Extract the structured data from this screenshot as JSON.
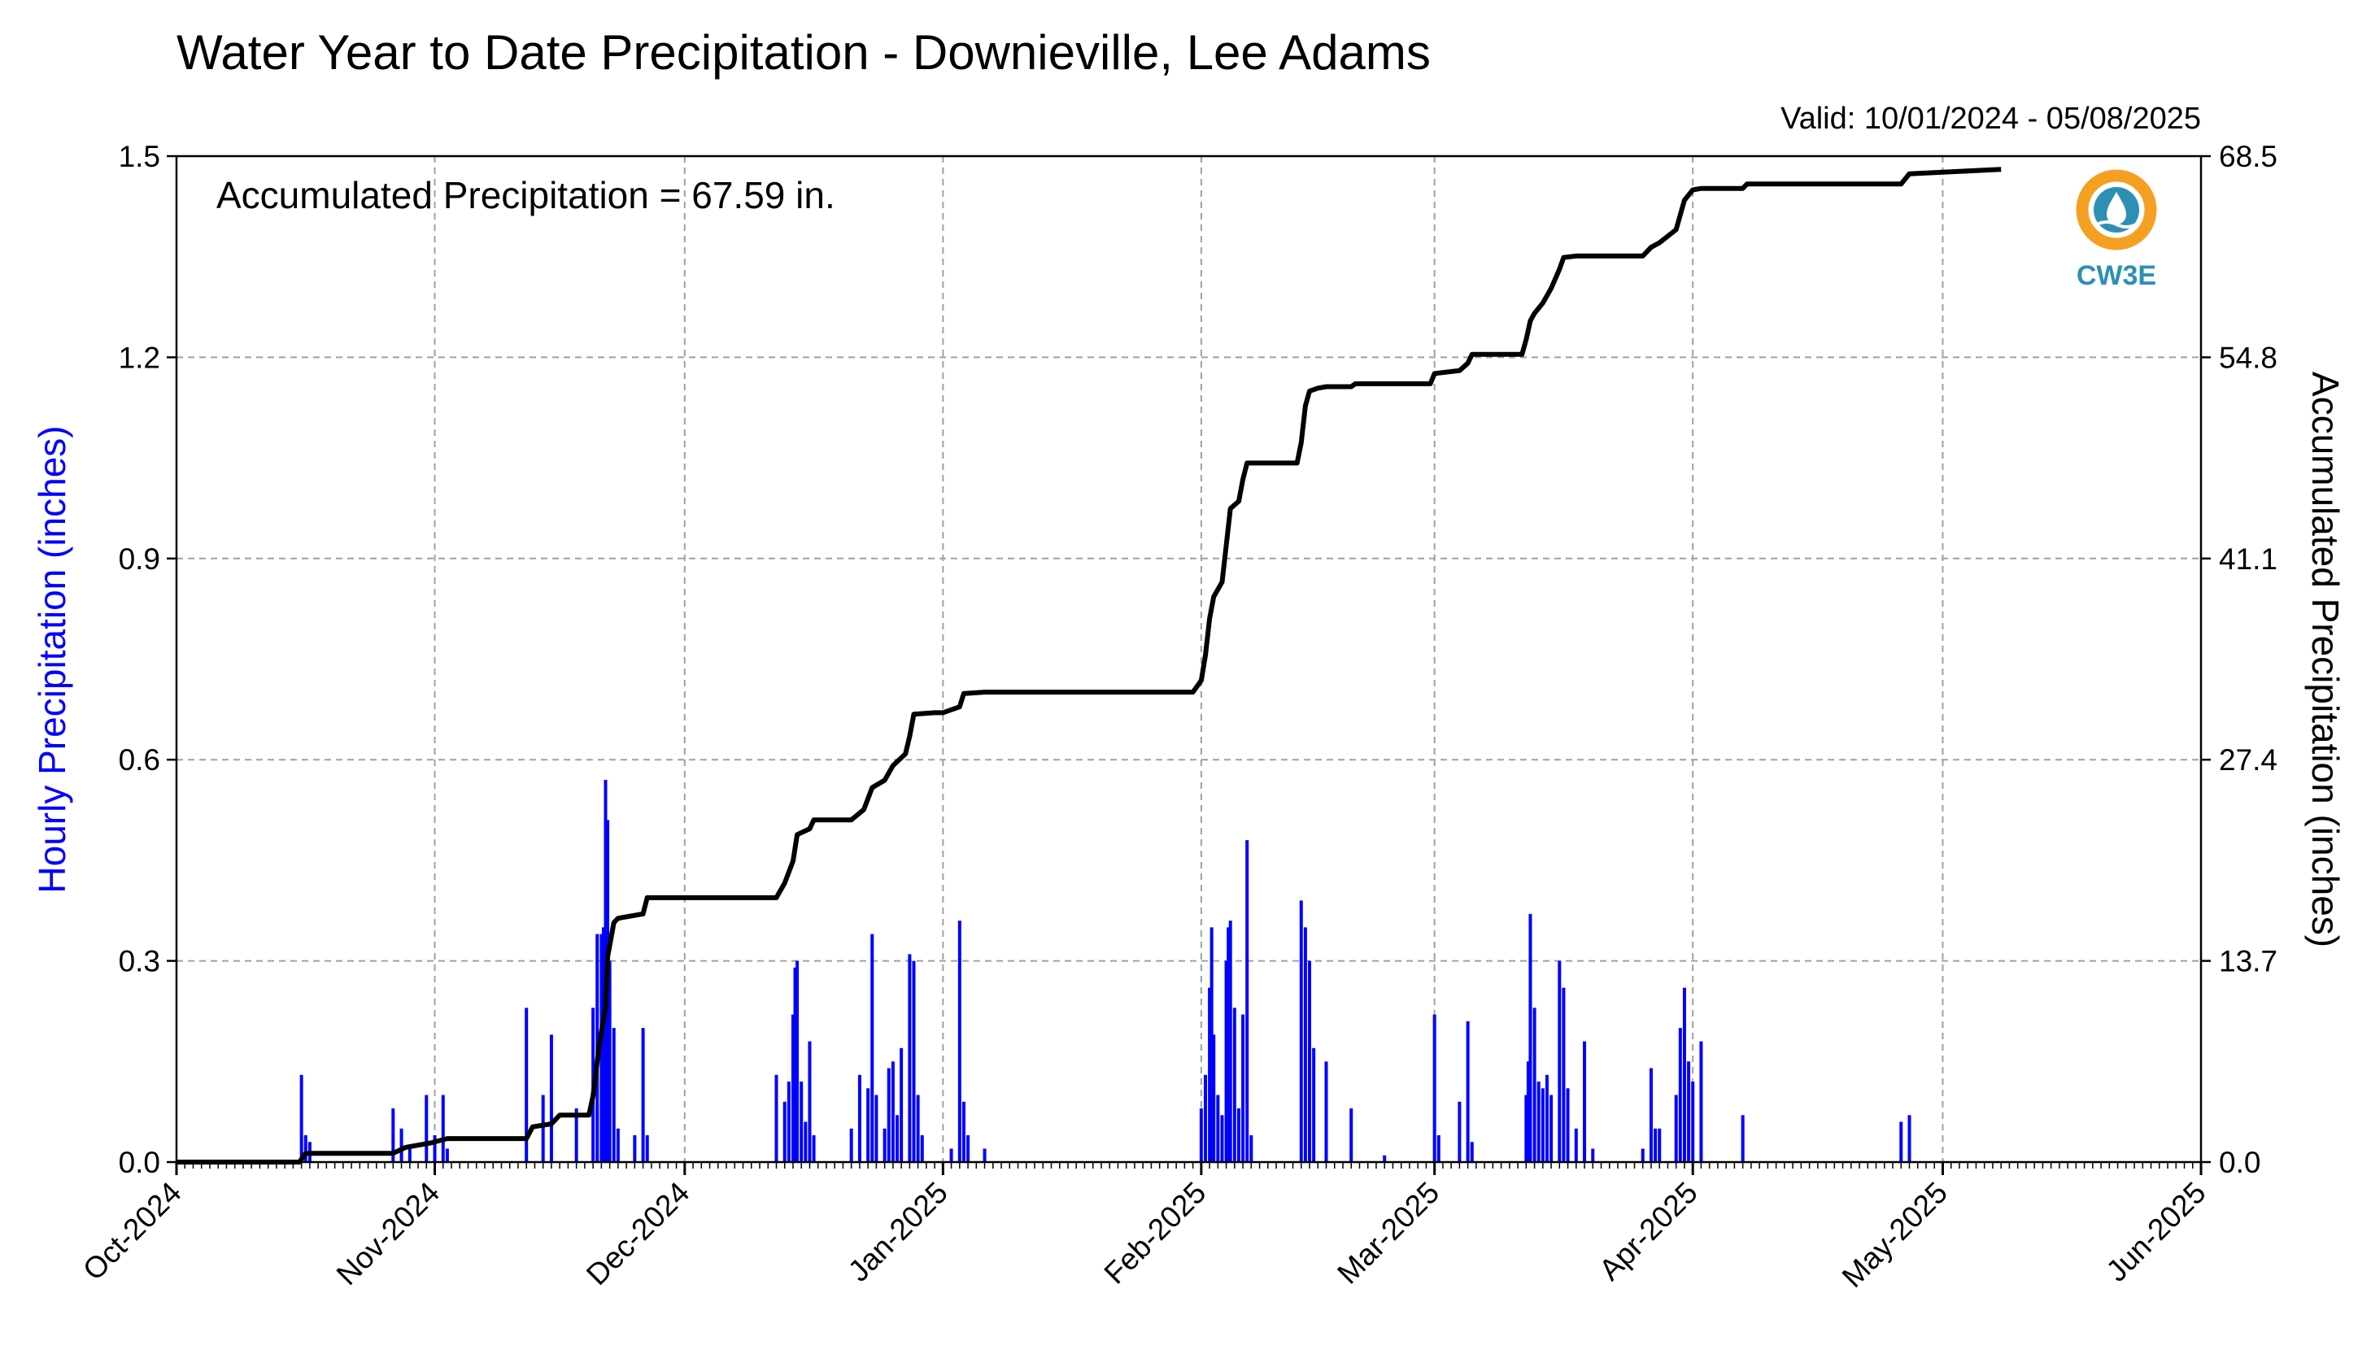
{
  "chart_data": {
    "type": "bar",
    "title": "Water Year to Date Precipitation - Downieville, Lee Adams",
    "valid": "Valid: 10/01/2024 - 05/08/2025",
    "annotation": "Accumulated Precipitation = 67.59 in.",
    "ylabel_left": "Hourly Precipitation (inches)",
    "ylabel_right": "Accumulated Precipitation (inches)",
    "colors": {
      "bars": "#0000ff",
      "line": "#000000",
      "left_label": "#0000ff",
      "logo_orange": "#f5a023",
      "logo_blue": "#2e8fb4"
    },
    "logo_text": "CW3E",
    "grid": true,
    "xlim": [
      "2024-10-01",
      "2025-06-01"
    ],
    "x_ticks": [
      "Oct-2024",
      "Nov-2024",
      "Dec-2024",
      "Jan-2025",
      "Feb-2025",
      "Mar-2025",
      "Apr-2025",
      "May-2025",
      "Jun-2025"
    ],
    "x_tick_dates": [
      "2024-10-01",
      "2024-11-01",
      "2024-12-01",
      "2025-01-01",
      "2025-02-01",
      "2025-03-01",
      "2025-04-01",
      "2025-05-01",
      "2025-06-01"
    ],
    "y_left": {
      "lim": [
        0,
        1.5
      ],
      "ticks": [
        "0.0",
        "0.3",
        "0.6",
        "0.9",
        "1.2",
        "1.5"
      ]
    },
    "y_right": {
      "lim": [
        0,
        68.5
      ],
      "ticks": [
        "0.0",
        "13.7",
        "27.4",
        "41.1",
        "54.8",
        "68.5"
      ]
    },
    "series": [
      {
        "name": "Hourly Precipitation",
        "kind": "bar",
        "axis": "left",
        "points": [
          [
            "2024-10-16",
            0.13
          ],
          [
            "2024-10-16 12:00",
            0.04
          ],
          [
            "2024-10-17",
            0.03
          ],
          [
            "2024-10-27",
            0.08
          ],
          [
            "2024-10-28",
            0.05
          ],
          [
            "2024-10-29",
            0.02
          ],
          [
            "2024-10-31",
            0.1
          ],
          [
            "2024-11-01",
            0.04
          ],
          [
            "2024-11-02",
            0.1
          ],
          [
            "2024-11-02 12:00",
            0.02
          ],
          [
            "2024-11-12",
            0.23
          ],
          [
            "2024-11-14",
            0.1
          ],
          [
            "2024-11-15",
            0.19
          ],
          [
            "2024-11-18",
            0.08
          ],
          [
            "2024-11-20",
            0.23
          ],
          [
            "2024-11-20 12:00",
            0.34
          ],
          [
            "2024-11-21",
            0.34
          ],
          [
            "2024-11-21 06:00",
            0.35
          ],
          [
            "2024-11-21 12:00",
            0.57
          ],
          [
            "2024-11-21 18:00",
            0.51
          ],
          [
            "2024-11-22",
            0.3
          ],
          [
            "2024-11-22 12:00",
            0.2
          ],
          [
            "2024-11-23",
            0.05
          ],
          [
            "2024-11-25",
            0.04
          ],
          [
            "2024-11-26",
            0.2
          ],
          [
            "2024-11-26 12:00",
            0.04
          ],
          [
            "2024-12-12",
            0.13
          ],
          [
            "2024-12-13",
            0.09
          ],
          [
            "2024-12-13 12:00",
            0.12
          ],
          [
            "2024-12-14",
            0.22
          ],
          [
            "2024-12-14 06:00",
            0.29
          ],
          [
            "2024-12-14 12:00",
            0.3
          ],
          [
            "2024-12-15",
            0.12
          ],
          [
            "2024-12-15 12:00",
            0.06
          ],
          [
            "2024-12-16",
            0.18
          ],
          [
            "2024-12-16 12:00",
            0.04
          ],
          [
            "2024-12-21",
            0.05
          ],
          [
            "2024-12-22",
            0.13
          ],
          [
            "2024-12-23",
            0.11
          ],
          [
            "2024-12-23 12:00",
            0.34
          ],
          [
            "2024-12-24",
            0.1
          ],
          [
            "2024-12-25",
            0.05
          ],
          [
            "2024-12-25 12:00",
            0.14
          ],
          [
            "2024-12-26",
            0.15
          ],
          [
            "2024-12-26 12:00",
            0.07
          ],
          [
            "2024-12-27",
            0.17
          ],
          [
            "2024-12-28",
            0.31
          ],
          [
            "2024-12-28 12:00",
            0.3
          ],
          [
            "2024-12-29",
            0.1
          ],
          [
            "2024-12-29 12:00",
            0.04
          ],
          [
            "2025-01-02",
            0.02
          ],
          [
            "2025-01-03",
            0.36
          ],
          [
            "2025-01-03 12:00",
            0.09
          ],
          [
            "2025-01-04",
            0.04
          ],
          [
            "2025-01-06",
            0.02
          ],
          [
            "2025-02-01",
            0.08
          ],
          [
            "2025-02-01 12:00",
            0.13
          ],
          [
            "2025-02-02",
            0.26
          ],
          [
            "2025-02-02 06:00",
            0.35
          ],
          [
            "2025-02-02 12:00",
            0.19
          ],
          [
            "2025-02-03",
            0.1
          ],
          [
            "2025-02-03 12:00",
            0.07
          ],
          [
            "2025-02-04",
            0.3
          ],
          [
            "2025-02-04 06:00",
            0.35
          ],
          [
            "2025-02-04 12:00",
            0.36
          ],
          [
            "2025-02-05",
            0.23
          ],
          [
            "2025-02-05 12:00",
            0.08
          ],
          [
            "2025-02-06",
            0.22
          ],
          [
            "2025-02-06 12:00",
            0.48
          ],
          [
            "2025-02-07",
            0.04
          ],
          [
            "2025-02-13",
            0.39
          ],
          [
            "2025-02-13 12:00",
            0.35
          ],
          [
            "2025-02-14",
            0.3
          ],
          [
            "2025-02-14 12:00",
            0.17
          ],
          [
            "2025-02-16",
            0.15
          ],
          [
            "2025-02-19",
            0.08
          ],
          [
            "2025-02-23",
            0.01
          ],
          [
            "2025-03-01",
            0.22
          ],
          [
            "2025-03-01 12:00",
            0.04
          ],
          [
            "2025-03-04",
            0.09
          ],
          [
            "2025-03-05",
            0.21
          ],
          [
            "2025-03-05 12:00",
            0.03
          ],
          [
            "2025-03-12",
            0.1
          ],
          [
            "2025-03-12 06:00",
            0.15
          ],
          [
            "2025-03-12 12:00",
            0.37
          ],
          [
            "2025-03-13",
            0.23
          ],
          [
            "2025-03-13 12:00",
            0.12
          ],
          [
            "2025-03-14",
            0.11
          ],
          [
            "2025-03-14 12:00",
            0.13
          ],
          [
            "2025-03-15",
            0.1
          ],
          [
            "2025-03-16",
            0.3
          ],
          [
            "2025-03-16 12:00",
            0.26
          ],
          [
            "2025-03-17",
            0.11
          ],
          [
            "2025-03-18",
            0.05
          ],
          [
            "2025-03-19",
            0.18
          ],
          [
            "2025-03-20",
            0.02
          ],
          [
            "2025-03-26",
            0.02
          ],
          [
            "2025-03-27",
            0.14
          ],
          [
            "2025-03-27 12:00",
            0.05
          ],
          [
            "2025-03-28",
            0.05
          ],
          [
            "2025-03-30",
            0.1
          ],
          [
            "2025-03-30 12:00",
            0.2
          ],
          [
            "2025-03-31",
            0.26
          ],
          [
            "2025-03-31 12:00",
            0.15
          ],
          [
            "2025-04-01",
            0.12
          ],
          [
            "2025-04-02",
            0.18
          ],
          [
            "2025-04-07",
            0.07
          ],
          [
            "2025-04-26",
            0.06
          ],
          [
            "2025-04-27",
            0.07
          ]
        ]
      },
      {
        "name": "Accumulated Precipitation",
        "kind": "line",
        "axis": "right",
        "points": [
          [
            "2024-10-01",
            0.0
          ],
          [
            "2024-10-15 18:00",
            0.0
          ],
          [
            "2024-10-16 12:00",
            0.6
          ],
          [
            "2024-10-27",
            0.6
          ],
          [
            "2024-10-28 12:00",
            1.0
          ],
          [
            "2024-10-31 12:00",
            1.3
          ],
          [
            "2024-11-02 12:00",
            1.6
          ],
          [
            "2024-11-12",
            1.6
          ],
          [
            "2024-11-12 18:00",
            2.4
          ],
          [
            "2024-11-15",
            2.6
          ],
          [
            "2024-11-16",
            3.2
          ],
          [
            "2024-11-19 12:00",
            3.2
          ],
          [
            "2024-11-20",
            4.5
          ],
          [
            "2024-11-20 18:00",
            8.0
          ],
          [
            "2024-11-21 12:00",
            10.5
          ],
          [
            "2024-11-21 18:00",
            14.0
          ],
          [
            "2024-11-22 12:00",
            16.3
          ],
          [
            "2024-11-23",
            16.6
          ],
          [
            "2024-11-26",
            16.9
          ],
          [
            "2024-11-26 12:00",
            18.0
          ],
          [
            "2024-12-12",
            18.0
          ],
          [
            "2024-12-13",
            19.0
          ],
          [
            "2024-12-14",
            20.5
          ],
          [
            "2024-12-14 12:00",
            22.3
          ],
          [
            "2024-12-16",
            22.7
          ],
          [
            "2024-12-16 12:00",
            23.3
          ],
          [
            "2024-12-21",
            23.3
          ],
          [
            "2024-12-22 12:00",
            24.0
          ],
          [
            "2024-12-23 12:00",
            25.5
          ],
          [
            "2024-12-25",
            26.0
          ],
          [
            "2024-12-26",
            27.0
          ],
          [
            "2024-12-27 12:00",
            27.8
          ],
          [
            "2024-12-28",
            29.0
          ],
          [
            "2024-12-28 12:00",
            30.5
          ],
          [
            "2024-12-31",
            30.6
          ],
          [
            "2025-01-01",
            30.6
          ],
          [
            "2025-01-03",
            31.0
          ],
          [
            "2025-01-03 12:00",
            31.9
          ],
          [
            "2025-01-06",
            32.0
          ],
          [
            "2025-01-31",
            32.0
          ],
          [
            "2025-02-01",
            32.8
          ],
          [
            "2025-02-01 12:00",
            34.5
          ],
          [
            "2025-02-02",
            37.0
          ],
          [
            "2025-02-02 12:00",
            38.5
          ],
          [
            "2025-02-03 12:00",
            39.5
          ],
          [
            "2025-02-04",
            42.0
          ],
          [
            "2025-02-04 12:00",
            44.5
          ],
          [
            "2025-02-05 12:00",
            45.0
          ],
          [
            "2025-02-06",
            46.5
          ],
          [
            "2025-02-06 12:00",
            47.6
          ],
          [
            "2025-02-12 12:00",
            47.6
          ],
          [
            "2025-02-13",
            49.0
          ],
          [
            "2025-02-13 12:00",
            51.5
          ],
          [
            "2025-02-14",
            52.5
          ],
          [
            "2025-02-15",
            52.7
          ],
          [
            "2025-02-16",
            52.8
          ],
          [
            "2025-02-19",
            52.8
          ],
          [
            "2025-02-19 12:00",
            53.0
          ],
          [
            "2025-02-28 12:00",
            53.0
          ],
          [
            "2025-03-01",
            53.7
          ],
          [
            "2025-03-04",
            53.9
          ],
          [
            "2025-03-05",
            54.4
          ],
          [
            "2025-03-05 12:00",
            55.0
          ],
          [
            "2025-03-11 12:00",
            55.0
          ],
          [
            "2025-03-12",
            56.0
          ],
          [
            "2025-03-12 12:00",
            57.3
          ],
          [
            "2025-03-13",
            57.8
          ],
          [
            "2025-03-14",
            58.5
          ],
          [
            "2025-03-15",
            59.5
          ],
          [
            "2025-03-16",
            60.8
          ],
          [
            "2025-03-16 12:00",
            61.6
          ],
          [
            "2025-03-18",
            61.7
          ],
          [
            "2025-03-26",
            61.7
          ],
          [
            "2025-03-27",
            62.3
          ],
          [
            "2025-03-28",
            62.6
          ],
          [
            "2025-03-30",
            63.5
          ],
          [
            "2025-03-31",
            65.5
          ],
          [
            "2025-04-01",
            66.2
          ],
          [
            "2025-04-02",
            66.3
          ],
          [
            "2025-04-07",
            66.3
          ],
          [
            "2025-04-07 12:00",
            66.6
          ],
          [
            "2025-04-26",
            66.6
          ],
          [
            "2025-04-27",
            67.3
          ],
          [
            "2025-05-08",
            67.6
          ]
        ]
      }
    ]
  }
}
